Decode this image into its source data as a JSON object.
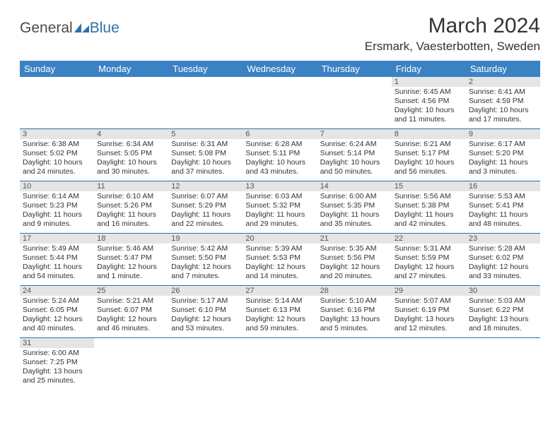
{
  "logo": {
    "part1": "General",
    "part2": "Blue"
  },
  "title": "March 2024",
  "location": "Ersmark, Vaesterbotten, Sweden",
  "colors": {
    "header_bg": "#3b82c4",
    "header_text": "#ffffff",
    "border": "#2f6fa7",
    "daynum_bg": "#e5e5e5",
    "logo_gray": "#4a4a4a",
    "logo_blue": "#2f6fa7"
  },
  "weekdays": [
    "Sunday",
    "Monday",
    "Tuesday",
    "Wednesday",
    "Thursday",
    "Friday",
    "Saturday"
  ],
  "weeks": [
    [
      null,
      null,
      null,
      null,
      null,
      {
        "n": "1",
        "sr": "Sunrise: 6:45 AM",
        "ss": "Sunset: 4:56 PM",
        "d1": "Daylight: 10 hours",
        "d2": "and 11 minutes."
      },
      {
        "n": "2",
        "sr": "Sunrise: 6:41 AM",
        "ss": "Sunset: 4:59 PM",
        "d1": "Daylight: 10 hours",
        "d2": "and 17 minutes."
      }
    ],
    [
      {
        "n": "3",
        "sr": "Sunrise: 6:38 AM",
        "ss": "Sunset: 5:02 PM",
        "d1": "Daylight: 10 hours",
        "d2": "and 24 minutes."
      },
      {
        "n": "4",
        "sr": "Sunrise: 6:34 AM",
        "ss": "Sunset: 5:05 PM",
        "d1": "Daylight: 10 hours",
        "d2": "and 30 minutes."
      },
      {
        "n": "5",
        "sr": "Sunrise: 6:31 AM",
        "ss": "Sunset: 5:08 PM",
        "d1": "Daylight: 10 hours",
        "d2": "and 37 minutes."
      },
      {
        "n": "6",
        "sr": "Sunrise: 6:28 AM",
        "ss": "Sunset: 5:11 PM",
        "d1": "Daylight: 10 hours",
        "d2": "and 43 minutes."
      },
      {
        "n": "7",
        "sr": "Sunrise: 6:24 AM",
        "ss": "Sunset: 5:14 PM",
        "d1": "Daylight: 10 hours",
        "d2": "and 50 minutes."
      },
      {
        "n": "8",
        "sr": "Sunrise: 6:21 AM",
        "ss": "Sunset: 5:17 PM",
        "d1": "Daylight: 10 hours",
        "d2": "and 56 minutes."
      },
      {
        "n": "9",
        "sr": "Sunrise: 6:17 AM",
        "ss": "Sunset: 5:20 PM",
        "d1": "Daylight: 11 hours",
        "d2": "and 3 minutes."
      }
    ],
    [
      {
        "n": "10",
        "sr": "Sunrise: 6:14 AM",
        "ss": "Sunset: 5:23 PM",
        "d1": "Daylight: 11 hours",
        "d2": "and 9 minutes."
      },
      {
        "n": "11",
        "sr": "Sunrise: 6:10 AM",
        "ss": "Sunset: 5:26 PM",
        "d1": "Daylight: 11 hours",
        "d2": "and 16 minutes."
      },
      {
        "n": "12",
        "sr": "Sunrise: 6:07 AM",
        "ss": "Sunset: 5:29 PM",
        "d1": "Daylight: 11 hours",
        "d2": "and 22 minutes."
      },
      {
        "n": "13",
        "sr": "Sunrise: 6:03 AM",
        "ss": "Sunset: 5:32 PM",
        "d1": "Daylight: 11 hours",
        "d2": "and 29 minutes."
      },
      {
        "n": "14",
        "sr": "Sunrise: 6:00 AM",
        "ss": "Sunset: 5:35 PM",
        "d1": "Daylight: 11 hours",
        "d2": "and 35 minutes."
      },
      {
        "n": "15",
        "sr": "Sunrise: 5:56 AM",
        "ss": "Sunset: 5:38 PM",
        "d1": "Daylight: 11 hours",
        "d2": "and 42 minutes."
      },
      {
        "n": "16",
        "sr": "Sunrise: 5:53 AM",
        "ss": "Sunset: 5:41 PM",
        "d1": "Daylight: 11 hours",
        "d2": "and 48 minutes."
      }
    ],
    [
      {
        "n": "17",
        "sr": "Sunrise: 5:49 AM",
        "ss": "Sunset: 5:44 PM",
        "d1": "Daylight: 11 hours",
        "d2": "and 54 minutes."
      },
      {
        "n": "18",
        "sr": "Sunrise: 5:46 AM",
        "ss": "Sunset: 5:47 PM",
        "d1": "Daylight: 12 hours",
        "d2": "and 1 minute."
      },
      {
        "n": "19",
        "sr": "Sunrise: 5:42 AM",
        "ss": "Sunset: 5:50 PM",
        "d1": "Daylight: 12 hours",
        "d2": "and 7 minutes."
      },
      {
        "n": "20",
        "sr": "Sunrise: 5:39 AM",
        "ss": "Sunset: 5:53 PM",
        "d1": "Daylight: 12 hours",
        "d2": "and 14 minutes."
      },
      {
        "n": "21",
        "sr": "Sunrise: 5:35 AM",
        "ss": "Sunset: 5:56 PM",
        "d1": "Daylight: 12 hours",
        "d2": "and 20 minutes."
      },
      {
        "n": "22",
        "sr": "Sunrise: 5:31 AM",
        "ss": "Sunset: 5:59 PM",
        "d1": "Daylight: 12 hours",
        "d2": "and 27 minutes."
      },
      {
        "n": "23",
        "sr": "Sunrise: 5:28 AM",
        "ss": "Sunset: 6:02 PM",
        "d1": "Daylight: 12 hours",
        "d2": "and 33 minutes."
      }
    ],
    [
      {
        "n": "24",
        "sr": "Sunrise: 5:24 AM",
        "ss": "Sunset: 6:05 PM",
        "d1": "Daylight: 12 hours",
        "d2": "and 40 minutes."
      },
      {
        "n": "25",
        "sr": "Sunrise: 5:21 AM",
        "ss": "Sunset: 6:07 PM",
        "d1": "Daylight: 12 hours",
        "d2": "and 46 minutes."
      },
      {
        "n": "26",
        "sr": "Sunrise: 5:17 AM",
        "ss": "Sunset: 6:10 PM",
        "d1": "Daylight: 12 hours",
        "d2": "and 53 minutes."
      },
      {
        "n": "27",
        "sr": "Sunrise: 5:14 AM",
        "ss": "Sunset: 6:13 PM",
        "d1": "Daylight: 12 hours",
        "d2": "and 59 minutes."
      },
      {
        "n": "28",
        "sr": "Sunrise: 5:10 AM",
        "ss": "Sunset: 6:16 PM",
        "d1": "Daylight: 13 hours",
        "d2": "and 5 minutes."
      },
      {
        "n": "29",
        "sr": "Sunrise: 5:07 AM",
        "ss": "Sunset: 6:19 PM",
        "d1": "Daylight: 13 hours",
        "d2": "and 12 minutes."
      },
      {
        "n": "30",
        "sr": "Sunrise: 5:03 AM",
        "ss": "Sunset: 6:22 PM",
        "d1": "Daylight: 13 hours",
        "d2": "and 18 minutes."
      }
    ],
    [
      {
        "n": "31",
        "sr": "Sunrise: 6:00 AM",
        "ss": "Sunset: 7:25 PM",
        "d1": "Daylight: 13 hours",
        "d2": "and 25 minutes."
      },
      null,
      null,
      null,
      null,
      null,
      null
    ]
  ]
}
